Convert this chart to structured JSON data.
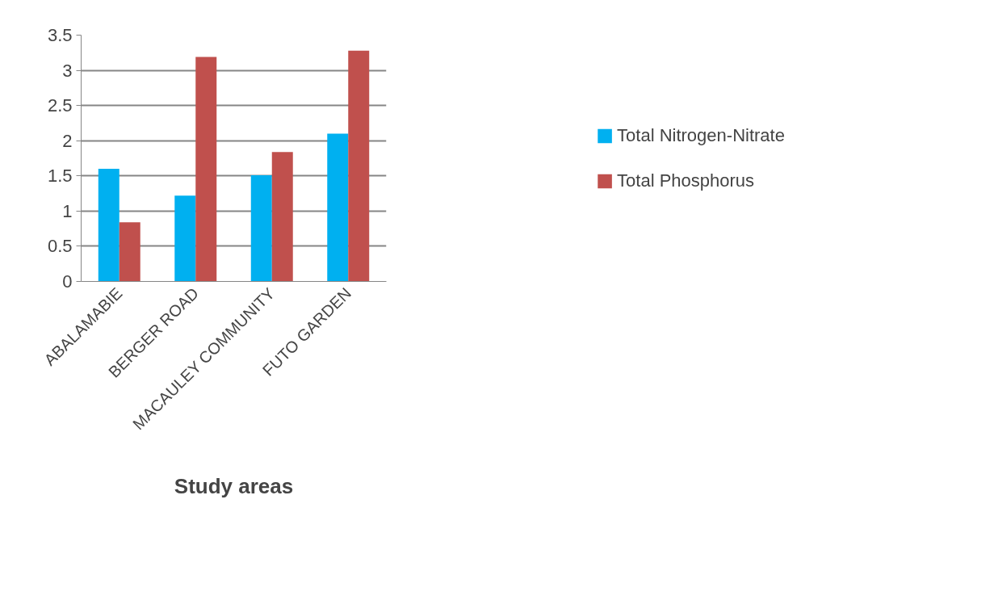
{
  "chart_data": {
    "type": "bar",
    "xlabel": "Study areas",
    "categories": [
      "ABALAMABIE",
      "BERGER ROAD",
      "MACAULEY COMMUNITY",
      "FUTO GARDEN"
    ],
    "series": [
      {
        "name": "Total Nitrogen-Nitrate",
        "color": "#00b0f0",
        "values": [
          1.6,
          1.22,
          1.51,
          2.1
        ]
      },
      {
        "name": "Total Phosphorus",
        "color": "#c0504d",
        "values": [
          0.84,
          3.19,
          1.84,
          3.28
        ]
      }
    ],
    "ylim": [
      0,
      3.5
    ],
    "yticks": [
      0,
      0.5,
      1,
      1.5,
      2,
      2.5,
      3,
      3.5
    ],
    "grid": "y",
    "legend": "right"
  }
}
